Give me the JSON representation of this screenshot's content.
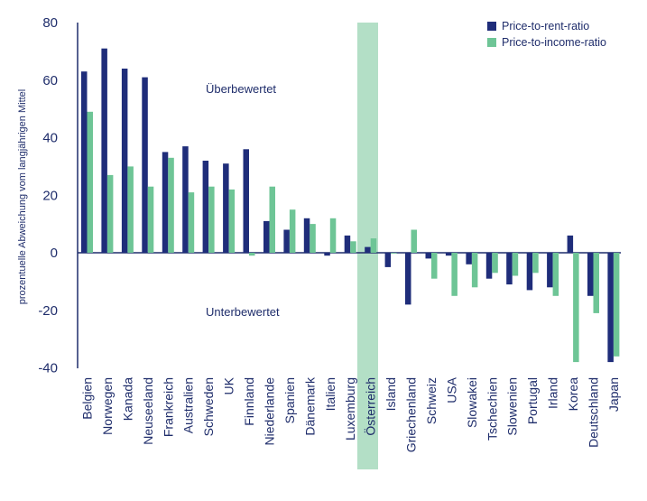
{
  "chart_data": {
    "type": "bar",
    "ylabel": "prozentuelle Abweichung vom langjährigen Mittel",
    "ylim": [
      -40,
      80
    ],
    "yticks": [
      "80",
      "60",
      "40",
      "20",
      "0",
      "-20",
      "-40"
    ],
    "yticks_values": [
      80,
      60,
      40,
      20,
      0,
      -20,
      -40
    ],
    "annotations": {
      "above": "Überbewertet",
      "below": "Unterbewertet"
    },
    "highlight_category": "Österreich",
    "categories": [
      "Belgien",
      "Norwegen",
      "Kanada",
      "Neuseeland",
      "Frankreich",
      "Australien",
      "Schweden",
      "UK",
      "Finnland",
      "Niederlande",
      "Spanien",
      "Dänemark",
      "Italien",
      "Luxemburg",
      "Österreich",
      "Island",
      "Griechenland",
      "Schweiz",
      "USA",
      "Slowakei",
      "Tschechien",
      "Slowenien",
      "Portugal",
      "Irland",
      "Korea",
      "Deutschland",
      "Japan"
    ],
    "series": [
      {
        "name": "Price-to-rent-ratio",
        "color": "#1f2d7a",
        "values": [
          63,
          71,
          64,
          61,
          35,
          37,
          32,
          31,
          36,
          11,
          8,
          12,
          -1,
          6,
          2,
          -5,
          -18,
          -2,
          -1,
          -4,
          -9,
          -11,
          -13,
          -12,
          6,
          -15,
          -38
        ]
      },
      {
        "name": "Price-to-income-ratio",
        "color": "#6ec596",
        "values": [
          49,
          27,
          30,
          23,
          33,
          21,
          23,
          22,
          -1,
          23,
          15,
          10,
          12,
          4,
          5,
          0,
          8,
          -9,
          -15,
          -12,
          -7,
          -8,
          -7,
          -15,
          -38,
          -21,
          -36
        ]
      }
    ],
    "grid": false,
    "legend_position": "top-right",
    "colors": {
      "axis": "#1f2d6b",
      "highlight": "#b3dfc6"
    }
  }
}
